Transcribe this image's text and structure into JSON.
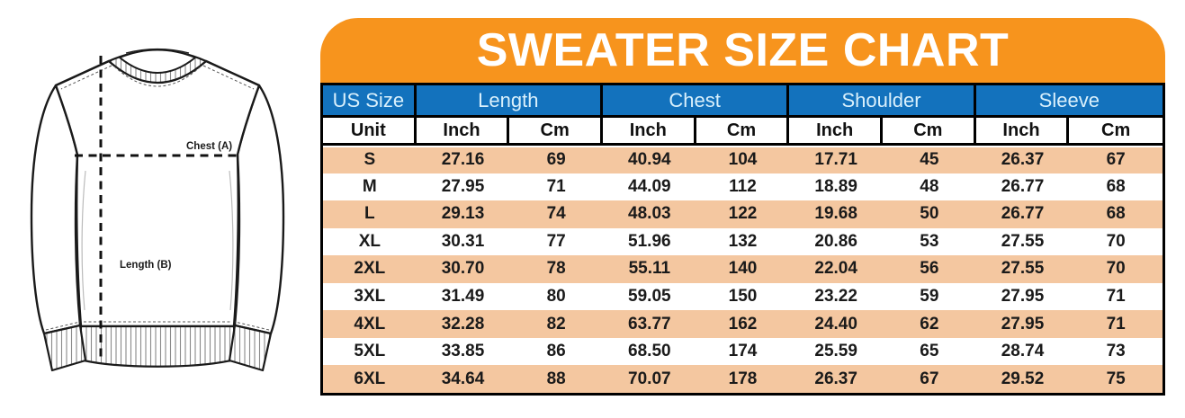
{
  "title": "SWEATER SIZE CHART",
  "diagram": {
    "chest_label": "Chest (A)",
    "length_label": "Length (B)"
  },
  "colors": {
    "banner_orange": "#F7941D",
    "header_blue": "#1372BD",
    "header_text": "#D9F0FC",
    "row_peach": "#F4C7A0",
    "ink": "#1A1A1A",
    "title_text": "#FFFFFF"
  },
  "chart_data": {
    "type": "table",
    "title": "SWEATER SIZE CHART",
    "group_headers": [
      {
        "label": "US Size",
        "span": 1
      },
      {
        "label": "Length",
        "span": 2
      },
      {
        "label": "Chest",
        "span": 2
      },
      {
        "label": "Shoulder",
        "span": 2
      },
      {
        "label": "Sleeve",
        "span": 2
      }
    ],
    "unit_row": [
      "Unit",
      "Inch",
      "Cm",
      "Inch",
      "Cm",
      "Inch",
      "Cm",
      "Inch",
      "Cm"
    ],
    "rows": [
      [
        "S",
        "27.16",
        "69",
        "40.94",
        "104",
        "17.71",
        "45",
        "26.37",
        "67"
      ],
      [
        "M",
        "27.95",
        "71",
        "44.09",
        "112",
        "18.89",
        "48",
        "26.77",
        "68"
      ],
      [
        "L",
        "29.13",
        "74",
        "48.03",
        "122",
        "19.68",
        "50",
        "26.77",
        "68"
      ],
      [
        "XL",
        "30.31",
        "77",
        "51.96",
        "132",
        "20.86",
        "53",
        "27.55",
        "70"
      ],
      [
        "2XL",
        "30.70",
        "78",
        "55.11",
        "140",
        "22.04",
        "56",
        "27.55",
        "70"
      ],
      [
        "3XL",
        "31.49",
        "80",
        "59.05",
        "150",
        "23.22",
        "59",
        "27.95",
        "71"
      ],
      [
        "4XL",
        "32.28",
        "82",
        "63.77",
        "162",
        "24.40",
        "62",
        "27.95",
        "71"
      ],
      [
        "5XL",
        "33.85",
        "86",
        "68.50",
        "174",
        "25.59",
        "65",
        "28.74",
        "73"
      ],
      [
        "6XL",
        "34.64",
        "88",
        "70.07",
        "178",
        "26.37",
        "67",
        "29.52",
        "75"
      ]
    ]
  }
}
